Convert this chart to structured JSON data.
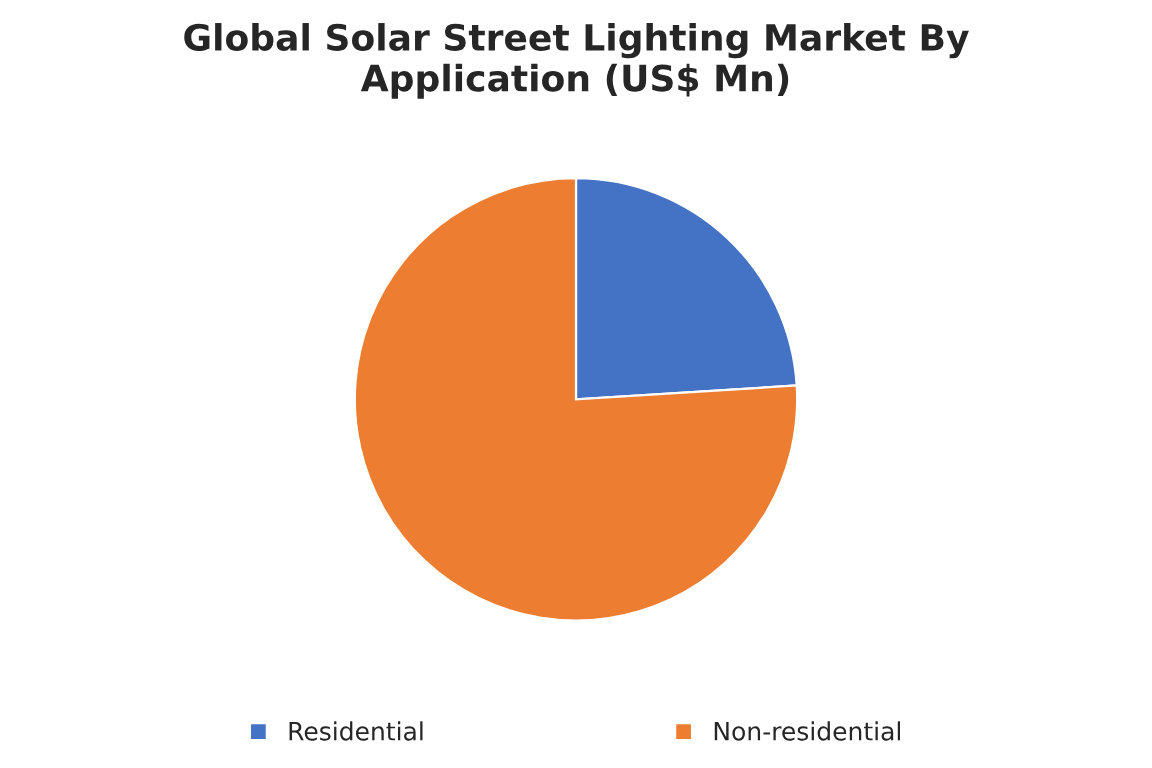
{
  "chart_data": {
    "type": "pie",
    "title": "Global Solar Street Lighting Market By\nApplication (US$ Mn)",
    "categories": [
      "Residential",
      "Non-residential"
    ],
    "values": [
      24,
      76
    ],
    "colors": [
      "#4472c4",
      "#ed7d31"
    ],
    "legend": "bottom"
  }
}
